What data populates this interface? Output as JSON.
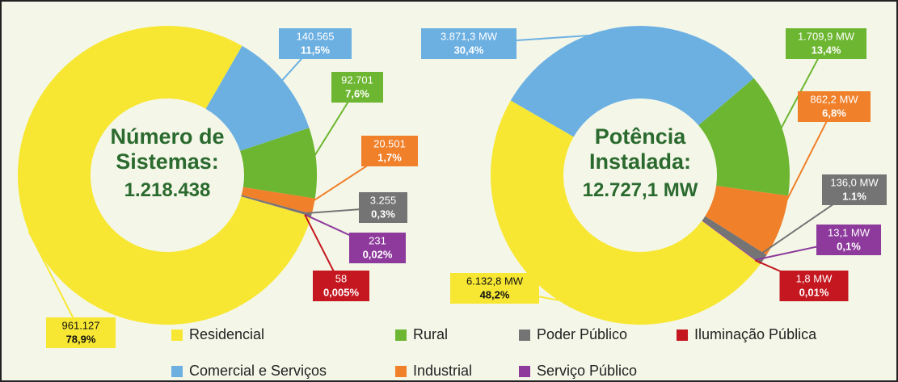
{
  "chart_data": [
    {
      "type": "donut",
      "title": "Número de Sistemas:",
      "subtitle": "1.218.438",
      "categories": [
        "Residencial",
        "Comercial e Serviços",
        "Rural",
        "Industrial",
        "Poder Público",
        "Serviço Público",
        "Iluminação Pública"
      ],
      "values": [
        961127,
        140565,
        92701,
        20501,
        3255,
        231,
        58
      ],
      "value_labels": [
        "961.127",
        "140.565",
        "92.701",
        "20.501",
        "3.255",
        "231",
        "58"
      ],
      "share_labels": [
        "78,9%",
        "11,5%",
        "7,6%",
        "1,7%",
        "0,3%",
        "0,02%",
        "0,005%"
      ],
      "colors": [
        "#f7e733",
        "#6cb0e2",
        "#6db631",
        "#f0802a",
        "#747474",
        "#8d3a9c",
        "#c4171f"
      ]
    },
    {
      "type": "donut",
      "title": "Potência Instalada:",
      "subtitle": "12.727,1 MW",
      "categories": [
        "Residencial",
        "Comercial e Serviços",
        "Rural",
        "Industrial",
        "Poder Público",
        "Serviço Público",
        "Iluminação Pública"
      ],
      "values": [
        6132.8,
        3871.3,
        1709.9,
        862.2,
        136.0,
        13.1,
        1.8
      ],
      "value_labels": [
        "6.132,8 MW",
        "3.871,3 MW",
        "1.709,9 MW",
        "862,2 MW",
        "136,0 MW",
        "13,1 MW",
        "1,8 MW"
      ],
      "share_labels": [
        "48,2%",
        "30,4%",
        "13,4%",
        "6,8%",
        "1.1%",
        "0,1%",
        "0,01%"
      ],
      "colors": [
        "#f7e733",
        "#6cb0e2",
        "#6db631",
        "#f0802a",
        "#747474",
        "#8d3a9c",
        "#c4171f"
      ]
    }
  ],
  "legend": [
    {
      "name": "Residencial",
      "color": "#f7e733"
    },
    {
      "name": "Rural",
      "color": "#6db631"
    },
    {
      "name": "Poder Público",
      "color": "#747474"
    },
    {
      "name": "Iluminação Pública",
      "color": "#c4171f"
    },
    {
      "name": "Comercial e Serviços",
      "color": "#6cb0e2"
    },
    {
      "name": "Industrial",
      "color": "#f0802a"
    },
    {
      "name": "Serviço Público",
      "color": "#8d3a9c"
    }
  ]
}
